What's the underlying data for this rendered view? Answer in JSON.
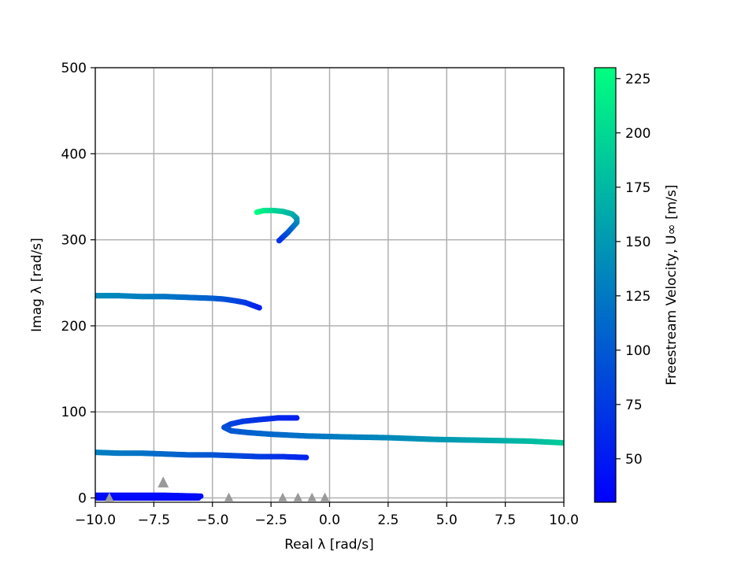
{
  "chart_data": {
    "type": "scatter",
    "title": "",
    "xlabel": "Real λ [rad/s]",
    "ylabel": "Imag λ [rad/s]",
    "xlim": [
      -10,
      10
    ],
    "ylim": [
      -5,
      500
    ],
    "xticks": [
      -10,
      -7.5,
      -5,
      -2.5,
      0,
      2.5,
      5,
      7.5,
      10
    ],
    "xtick_labels": [
      "−10.0",
      "−7.5",
      "−5.0",
      "−2.5",
      "0.0",
      "2.5",
      "5.0",
      "7.5",
      "10.0"
    ],
    "yticks": [
      0,
      100,
      200,
      300,
      400,
      500
    ],
    "ytick_labels": [
      "0",
      "100",
      "200",
      "300",
      "400",
      "500"
    ],
    "grid": true,
    "colorbar": {
      "label": "Freestream Velocity, U∞ [m/s]",
      "range": [
        30,
        230
      ],
      "ticks": [
        50,
        75,
        100,
        125,
        150,
        175,
        200,
        225
      ],
      "tick_labels": [
        "50",
        "75",
        "100",
        "125",
        "150",
        "175",
        "200",
        "225"
      ],
      "colormap": [
        "#0000ff",
        "#00ff80"
      ]
    },
    "series": [
      {
        "points": [
          {
            "x": -3.1,
            "y": 332,
            "u": 230
          },
          {
            "x": -2.8,
            "y": 334,
            "u": 215
          },
          {
            "x": -2.4,
            "y": 334,
            "u": 200
          },
          {
            "x": -2.0,
            "y": 333,
            "u": 185
          },
          {
            "x": -1.6,
            "y": 330,
            "u": 170
          },
          {
            "x": -1.4,
            "y": 325,
            "u": 155
          },
          {
            "x": -1.4,
            "y": 320,
            "u": 140
          },
          {
            "x": -1.6,
            "y": 314,
            "u": 120
          },
          {
            "x": -1.8,
            "y": 308,
            "u": 100
          },
          {
            "x": -2.0,
            "y": 303,
            "u": 85
          },
          {
            "x": -2.15,
            "y": 299,
            "u": 70
          }
        ]
      },
      {
        "points": [
          {
            "x": -10.0,
            "y": 235,
            "u": 140
          },
          {
            "x": -9.0,
            "y": 235,
            "u": 135
          },
          {
            "x": -8.0,
            "y": 234,
            "u": 130
          },
          {
            "x": -7.0,
            "y": 234,
            "u": 123
          },
          {
            "x": -6.0,
            "y": 233,
            "u": 115
          },
          {
            "x": -5.0,
            "y": 232,
            "u": 105
          },
          {
            "x": -4.5,
            "y": 231,
            "u": 95
          },
          {
            "x": -4.0,
            "y": 229,
            "u": 85
          },
          {
            "x": -3.6,
            "y": 227,
            "u": 75
          },
          {
            "x": -3.3,
            "y": 224,
            "u": 65
          },
          {
            "x": -3.0,
            "y": 221,
            "u": 55
          }
        ]
      },
      {
        "points": [
          {
            "x": -1.4,
            "y": 93,
            "u": 55
          },
          {
            "x": -2.2,
            "y": 93,
            "u": 60
          },
          {
            "x": -3.0,
            "y": 91,
            "u": 68
          },
          {
            "x": -3.7,
            "y": 89,
            "u": 75
          },
          {
            "x": -4.2,
            "y": 86,
            "u": 82
          },
          {
            "x": -4.5,
            "y": 82,
            "u": 90
          },
          {
            "x": -4.2,
            "y": 78,
            "u": 98
          },
          {
            "x": -3.5,
            "y": 76,
            "u": 105
          },
          {
            "x": -2.5,
            "y": 74,
            "u": 112
          },
          {
            "x": -1.0,
            "y": 72,
            "u": 120
          },
          {
            "x": 0.5,
            "y": 71,
            "u": 128
          },
          {
            "x": 2.5,
            "y": 70,
            "u": 137
          },
          {
            "x": 4.5,
            "y": 68,
            "u": 147
          },
          {
            "x": 6.5,
            "y": 67,
            "u": 160
          },
          {
            "x": 8.5,
            "y": 66,
            "u": 175
          },
          {
            "x": 10.0,
            "y": 64,
            "u": 190
          }
        ]
      },
      {
        "points": [
          {
            "x": -10.0,
            "y": 53,
            "u": 130
          },
          {
            "x": -9.0,
            "y": 52,
            "u": 125
          },
          {
            "x": -8.0,
            "y": 52,
            "u": 120
          },
          {
            "x": -7.0,
            "y": 51,
            "u": 112
          },
          {
            "x": -6.0,
            "y": 50,
            "u": 105
          },
          {
            "x": -5.0,
            "y": 50,
            "u": 97
          },
          {
            "x": -4.0,
            "y": 49,
            "u": 88
          },
          {
            "x": -3.0,
            "y": 48,
            "u": 78
          },
          {
            "x": -2.0,
            "y": 48,
            "u": 68
          },
          {
            "x": -1.0,
            "y": 47,
            "u": 58
          }
        ]
      },
      {
        "points": [
          {
            "x": -10.0,
            "y": 3,
            "u": 40
          },
          {
            "x": -8.5,
            "y": 3,
            "u": 40
          },
          {
            "x": -7.0,
            "y": 3,
            "u": 40
          },
          {
            "x": -5.5,
            "y": 2,
            "u": 40
          }
        ]
      },
      {
        "points": [
          {
            "x": -9.9,
            "y": 0,
            "u": 38
          },
          {
            "x": -9.5,
            "y": 0,
            "u": 38
          },
          {
            "x": -8.6,
            "y": 0,
            "u": 38
          },
          {
            "x": -8.1,
            "y": 0,
            "u": 38
          },
          {
            "x": -7.7,
            "y": 0,
            "u": 38
          },
          {
            "x": -6.5,
            "y": 0,
            "u": 38
          },
          {
            "x": -6.0,
            "y": 0,
            "u": 38
          },
          {
            "x": -5.6,
            "y": 0,
            "u": 38
          }
        ]
      }
    ],
    "reference_markers": {
      "color": "#999999",
      "shape": "triangle",
      "points": [
        {
          "x": -7.1,
          "y": 17
        },
        {
          "x": -4.3,
          "y": 0
        },
        {
          "x": -2.0,
          "y": 0
        },
        {
          "x": -1.35,
          "y": 0
        },
        {
          "x": -0.75,
          "y": 0
        },
        {
          "x": -0.2,
          "y": 0
        },
        {
          "x": -9.4,
          "y": 0
        }
      ]
    }
  }
}
